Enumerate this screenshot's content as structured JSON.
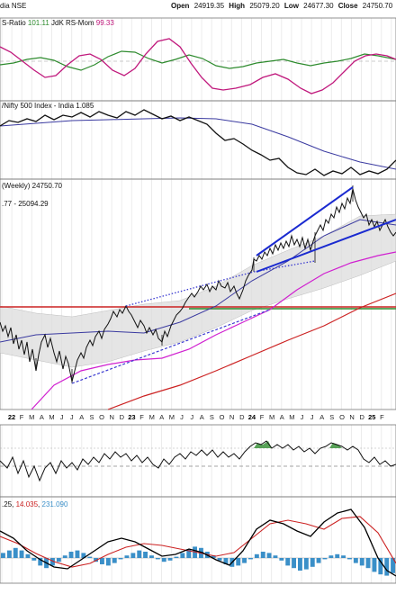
{
  "header": {
    "exchange": "dia NSE",
    "ohlc": [
      {
        "label": "Open",
        "value": "24919.35"
      },
      {
        "label": "High",
        "value": "25079.20"
      },
      {
        "label": "Low",
        "value": "24677.30"
      },
      {
        "label": "Close",
        "value": "24750.70"
      }
    ]
  },
  "panels": {
    "rs_ratio": {
      "label_prefix": "S-Ratio ",
      "ratio_value": "101.11",
      "label_mid": " JdK RS-Mom ",
      "mom_value": "99.33",
      "ratio_color": "#2e8b2e",
      "mom_color": "#c0187c"
    },
    "relative": {
      "label": "/Nifty 500 Index - India 1.085"
    },
    "price": {
      "label": "(Weekly) 24750.70",
      "ma_label": ".77 - 25094.29"
    },
    "indicator": {
      "label": ""
    },
    "macd": {
      "label_prefix": ".25, ",
      "signal_value": "14.035",
      "hist_value": "231.090",
      "macd_color": "#000000",
      "signal_color": "#cc2222",
      "hist_color": "#3a8fc8"
    }
  },
  "x_axis_labels": [
    {
      "t": "22",
      "bold": true
    },
    {
      "t": "F"
    },
    {
      "t": "M"
    },
    {
      "t": "A"
    },
    {
      "t": "M"
    },
    {
      "t": "J"
    },
    {
      "t": "J"
    },
    {
      "t": "A"
    },
    {
      "t": "S"
    },
    {
      "t": "O"
    },
    {
      "t": "N"
    },
    {
      "t": "D"
    },
    {
      "t": "23",
      "bold": true
    },
    {
      "t": "F"
    },
    {
      "t": "M"
    },
    {
      "t": "A"
    },
    {
      "t": "M"
    },
    {
      "t": "J"
    },
    {
      "t": "J"
    },
    {
      "t": "A"
    },
    {
      "t": "S"
    },
    {
      "t": "O"
    },
    {
      "t": "N"
    },
    {
      "t": "D"
    },
    {
      "t": "24",
      "bold": true
    },
    {
      "t": "F"
    },
    {
      "t": "M"
    },
    {
      "t": "A"
    },
    {
      "t": "M"
    },
    {
      "t": "J"
    },
    {
      "t": "J"
    },
    {
      "t": "A"
    },
    {
      "t": "S"
    },
    {
      "t": "O"
    },
    {
      "t": "N"
    },
    {
      "t": "D"
    },
    {
      "t": "25",
      "bold": true
    },
    {
      "t": "F"
    }
  ],
  "chart_data": {
    "type": "line",
    "price_series": {
      "name": "Weekly close",
      "x": [
        "2022-01",
        "2022-02",
        "2022-03",
        "2022-04",
        "2022-05",
        "2022-06",
        "2022-07",
        "2022-08",
        "2022-09",
        "2022-10",
        "2022-11",
        "2022-12",
        "2023-01",
        "2023-02",
        "2023-03",
        "2023-04",
        "2023-05",
        "2023-06",
        "2023-07",
        "2023-08",
        "2023-09",
        "2023-10",
        "2023-11",
        "2023-12",
        "2024-01",
        "2024-02",
        "2024-03",
        "2024-04",
        "2024-05",
        "2024-06",
        "2024-07",
        "2024-08",
        "2024-09",
        "2024-10",
        "2024-11",
        "2024-12",
        "2025-01",
        "2025-02"
      ],
      "values": [
        17800,
        17100,
        17300,
        17200,
        16400,
        15800,
        16500,
        17200,
        17500,
        17600,
        18200,
        18400,
        18000,
        17500,
        17200,
        17800,
        18400,
        18900,
        19600,
        19500,
        19900,
        19500,
        19800,
        21000,
        21700,
        22000,
        22300,
        22400,
        22600,
        23300,
        24800,
        24900,
        25600,
        26200,
        24700,
        24100,
        24000,
        24750
      ]
    },
    "horizontal_levels": [
      {
        "name": "red level",
        "value": 18600,
        "color": "#cc2222"
      },
      {
        "name": "green level",
        "value": 18100,
        "color": "#2a8a2a"
      }
    ]
  }
}
